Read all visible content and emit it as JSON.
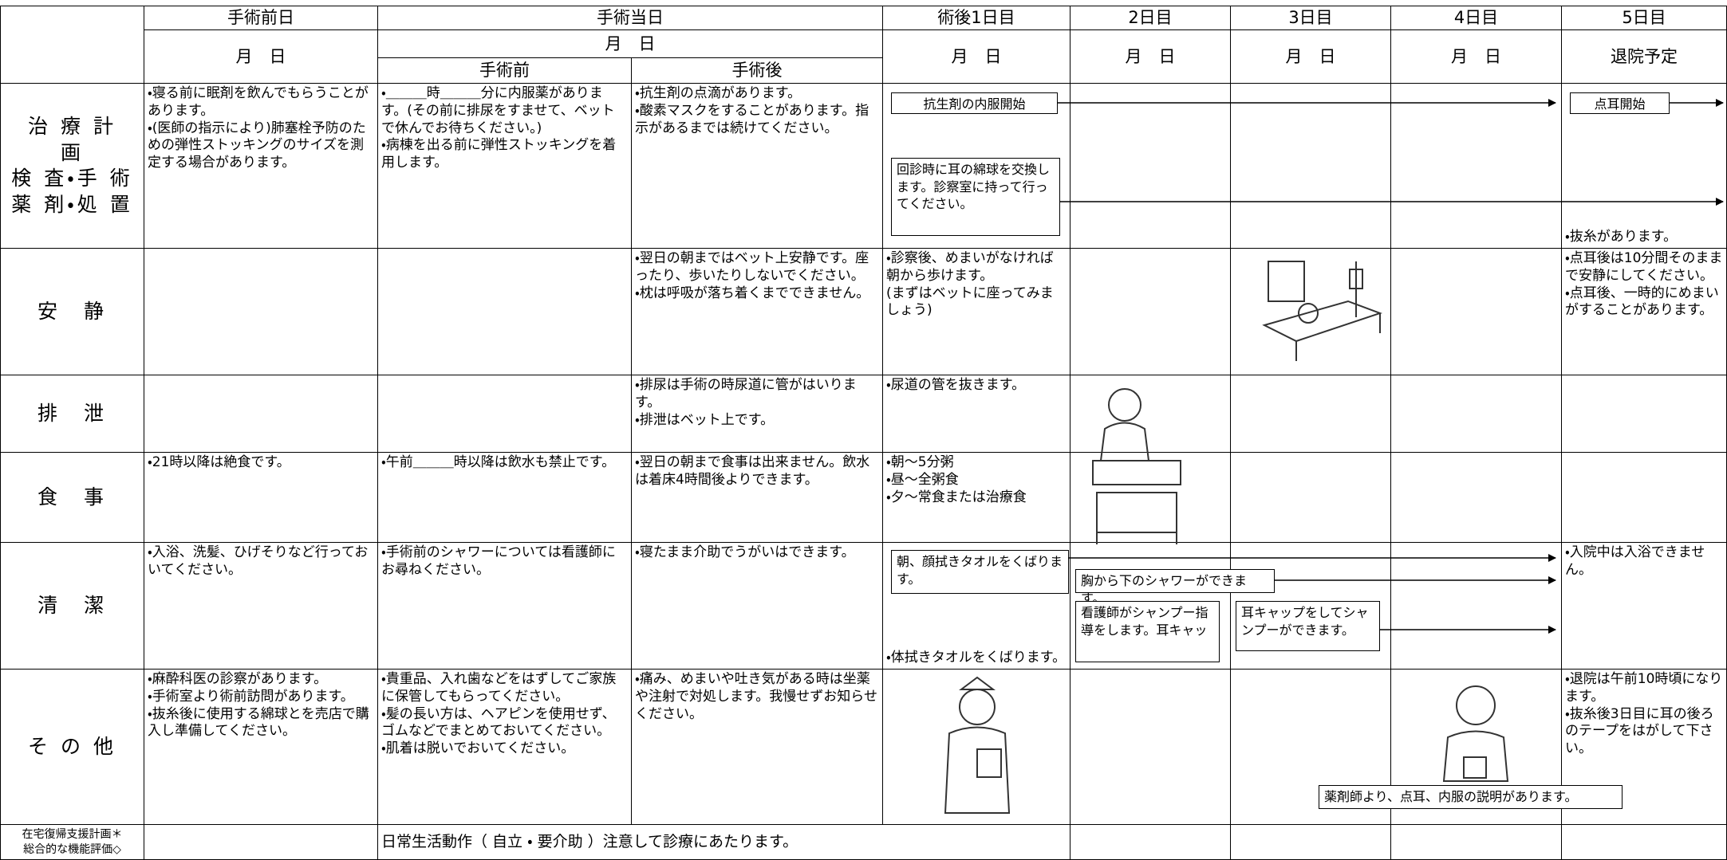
{
  "header": {
    "columns": [
      "手術前日",
      "手術当日",
      "術後1日目",
      "2日目",
      "3日目",
      "4日目",
      "5日目"
    ],
    "dates": [
      "月　日",
      "月　日",
      "月　日",
      "月　日",
      "月　日",
      "月　日",
      "退院予定"
    ],
    "subcolumns": [
      "手術前",
      "手術後"
    ]
  },
  "rows": [
    {
      "label": "治 療 計\n画\n検 査・手 術\n薬 剤・処 置",
      "cells": [
        "・寝る前に眠剤を飲んでもらうことがあります。\n・(医師の指示により)肺塞栓予防のための弾性ストッキングのサイズを測定する場合があります。",
        "・＿＿＿時＿＿＿分に内服薬があります。(その前に排尿をすませて、ベットで休んでお待ちください。)\n・病棟を出る前に弾性ストッキングを着用します。",
        "・抗生剤の点滴があります。\n・酸素マスクをすることがあります。指示があるまでは続けてください。",
        null,
        null,
        null,
        null,
        "・抜糸があります。"
      ],
      "boxes": [
        "抗生剤の内服開始",
        "点耳開始",
        "回診時に耳の綿球を交換します。診察室に持って行ってください。"
      ]
    },
    {
      "label": "安　静",
      "cells": [
        null,
        null,
        "・翌日の朝まではベット上安静です。座ったり、歩いたりしないでください。\n・枕は呼吸が落ち着くまでできません。",
        "・診察後、めまいがなければ朝から歩けます。\n(まずはベットに座ってみましょう)",
        null,
        null,
        null,
        "・点耳後は10分間そのままで安静にしてください。\n・点耳後、一時的にめまいがすることがあります。"
      ]
    },
    {
      "label": "排　泄",
      "cells": [
        null,
        null,
        "・排尿は手術の時尿道に管がはいります。\n・排泄はベット上です。",
        "・尿道の管を抜きます。",
        null,
        null,
        null,
        null
      ]
    },
    {
      "label": "食　事",
      "cells": [
        "・21時以降は絶食です。",
        "・午前＿＿＿時以降は飲水も禁止です。",
        "・翌日の朝まで食事は出来ません。飲水は着床4時間後よりできます。",
        "・朝～5分粥\n・昼～全粥食\n・夕～常食または治療食",
        null,
        null,
        null,
        null
      ]
    },
    {
      "label": "清　潔",
      "cells": [
        "・入浴、洗髪、ひげそりなど行っておいてください。",
        "・手術前のシャワーについては看護師にお尋ねください。",
        "・寝たまま介助でうがいはできます。",
        "・体拭きタオルをくばります。",
        null,
        null,
        null,
        "・入院中は入浴できません。"
      ],
      "boxes": [
        "朝、顔拭きタオルをくばります。",
        "胸から下のシャワーができます。",
        "看護師がシャンプー指導をします。耳キャッ",
        "耳キャップをしてシャンプーができます。"
      ]
    },
    {
      "label": "そ の 他",
      "cells": [
        "・麻酔科医の診察があります。\n・手術室より術前訪問があります。\n・抜糸後に使用する綿球とを売店で購入し準備してください。",
        "・貴重品、入れ歯などをはずしてご家族に保管してもらってください。\n・髪の長い方は、ヘアピンを使用せず、ゴムなどでまとめておいてください。\n・肌着は脱いでおいてください。",
        "・痛み、めまいや吐き気がある時は坐薬や注射で対処します。我慢せずお知らせください。",
        null,
        null,
        null,
        null,
        "・退院は午前10時頃になります。\n・抜糸後3日目に耳の後ろのテープをはがして下さい。"
      ],
      "boxes": [
        "薬剤師より、点耳、内服の説明があります。"
      ]
    },
    {
      "label": "在宅復帰支援計画＊\n総合的な機能評価◇",
      "cells": [
        null,
        "日常生活動作（ 自立 ・ 要介助 ）注意して診療にあたります。",
        null,
        null,
        null,
        null,
        null,
        null
      ]
    }
  ]
}
